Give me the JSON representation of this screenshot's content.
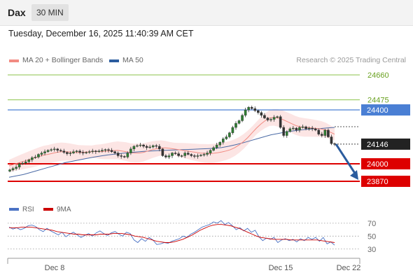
{
  "header": {
    "symbol": "Dax",
    "timeframe": "30 MIN"
  },
  "subtitle": "Tuesday, December 16, 2025 11:40:39 AM CET",
  "legend": {
    "items": [
      {
        "label": "MA 20 + Bollinger Bands",
        "color": "#f28b82"
      },
      {
        "label": "MA 50",
        "color": "#2b5c9e"
      }
    ],
    "credit": "Research © 2025 Trading Central"
  },
  "rsi_legend": {
    "items": [
      {
        "label": "RSI",
        "color": "#4a72c4"
      },
      {
        "label": "9MA",
        "color": "#cc0000"
      }
    ]
  },
  "chart_data": [
    {
      "type": "candlestick",
      "x_ticks": [
        "Dec 8",
        "Dec 15",
        "Dec 22"
      ],
      "ylim": [
        23850,
        24700
      ],
      "levels": [
        {
          "value": 24660,
          "label": "24660",
          "color": "#8bc34a",
          "kind": "target"
        },
        {
          "value": 24475,
          "label": "24475",
          "color": "#8bc34a",
          "kind": "target"
        },
        {
          "value": 24400,
          "label": "24400",
          "color": "#4a7fd4",
          "kind": "pivot"
        },
        {
          "value": 24146,
          "label": "24146",
          "color": "#222222",
          "kind": "last"
        },
        {
          "value": 24000,
          "label": "24000",
          "color": "#dd0000",
          "kind": "support"
        },
        {
          "value": 23870,
          "label": "23870",
          "color": "#dd0000",
          "kind": "support"
        }
      ],
      "last_price": 24146,
      "candles_close": [
        23955,
        23965,
        23975,
        24000,
        24005,
        24015,
        24030,
        24045,
        24050,
        24070,
        24080,
        24090,
        24100,
        24105,
        24110,
        24100,
        24095,
        24085,
        24075,
        24080,
        24090,
        24095,
        24085,
        24080,
        24085,
        24090,
        24095,
        24090,
        24095,
        24100,
        24105,
        24100,
        24090,
        24080,
        24060,
        24055,
        24050,
        24080,
        24110,
        24130,
        24135,
        24140,
        24130,
        24120,
        24125,
        24135,
        24130,
        24110,
        24060,
        24050,
        24060,
        24080,
        24075,
        24060,
        24060,
        24080,
        24070,
        24060,
        24055,
        24060,
        24065,
        24070,
        24080,
        24100,
        24120,
        24140,
        24160,
        24185,
        24200,
        24230,
        24270,
        24300,
        24320,
        24360,
        24400,
        24420,
        24410,
        24395,
        24380,
        24360,
        24340,
        24325,
        24330,
        24345,
        24350,
        24270,
        24210,
        24240,
        24260,
        24265,
        24250,
        24270,
        24275,
        24260,
        24265,
        24260,
        24250,
        24220,
        24210,
        24250,
        24200,
        24150,
        24146
      ],
      "ma20_series": [
        23985,
        23995,
        24005,
        24015,
        24025,
        24035,
        24045,
        24055,
        24065,
        24070,
        24078,
        24085,
        24090,
        24090,
        24088,
        24085,
        24083,
        24085,
        24088,
        24090,
        24092,
        24090,
        24092,
        24095,
        24098,
        24100,
        24095,
        24090,
        24082,
        24080,
        24080,
        24085,
        24095,
        24105,
        24112,
        24118,
        24118,
        24115,
        24110,
        24105,
        24100,
        24095,
        24090,
        24085,
        24080,
        24078,
        24076,
        24078,
        24082,
        24088,
        24095,
        24105,
        24120,
        24140,
        24165,
        24195,
        24230,
        24265,
        24295,
        24320,
        24340,
        24345,
        24340,
        24330,
        24315,
        24300,
        24285,
        24275,
        24270,
        24268,
        24265,
        24262,
        24258,
        24250,
        24235,
        24220
      ],
      "ma50_series": [
        23900,
        23910,
        23920,
        23935,
        23950,
        23965,
        23980,
        23995,
        24010,
        24020,
        24030,
        24040,
        24050,
        24058,
        24066,
        24072,
        24078,
        24083,
        24088,
        24092,
        24095,
        24098,
        24100,
        24102,
        24104,
        24106,
        24108,
        24110,
        24112,
        24115,
        24120,
        24130,
        24142,
        24155,
        24170,
        24185,
        24200,
        24215,
        24225,
        24235,
        24243,
        24250,
        24255,
        24260,
        24262,
        24266,
        24270
      ],
      "forecast": {
        "from": 24146,
        "to": 23870
      }
    },
    {
      "type": "line",
      "title": "RSI",
      "ylim": [
        20,
        85
      ],
      "y_ticks": [
        70,
        50,
        30
      ],
      "series": [
        {
          "name": "RSI",
          "color": "#4a72c4",
          "values": [
            64,
            61,
            63,
            60,
            62,
            66,
            67,
            65,
            60,
            57,
            62,
            58,
            55,
            52,
            56,
            49,
            53,
            56,
            52,
            48,
            51,
            54,
            50,
            55,
            58,
            54,
            51,
            55,
            57,
            53,
            50,
            56,
            54,
            44,
            40,
            46,
            42,
            48,
            44,
            37,
            38,
            40,
            39,
            42,
            44,
            46,
            50,
            48,
            53,
            56,
            60,
            64,
            66,
            68,
            72,
            70,
            74,
            68,
            71,
            66,
            60,
            63,
            58,
            62,
            56,
            59,
            49,
            43,
            47,
            45,
            48,
            40,
            44,
            46,
            43,
            45,
            41,
            46,
            43,
            48,
            45,
            48,
            42,
            48,
            38,
            41,
            36
          ]
        },
        {
          "name": "9MA",
          "color": "#cc0000",
          "values": [
            63,
            63,
            63,
            64,
            64,
            64,
            63,
            62,
            61,
            60,
            59,
            57,
            56,
            55,
            54,
            53,
            53,
            52,
            52,
            52,
            52,
            53,
            53,
            53,
            54,
            54,
            54,
            53,
            52,
            50,
            49,
            48,
            46,
            44,
            42,
            41,
            40,
            40,
            41,
            43,
            45,
            48,
            51,
            55,
            59,
            62,
            65,
            67,
            68,
            68,
            67,
            66,
            64,
            62,
            59,
            56,
            53,
            50,
            48,
            47,
            46,
            45,
            45,
            45,
            45,
            44,
            44,
            44,
            44,
            44,
            44,
            44,
            43,
            42,
            41,
            40
          ]
        }
      ]
    }
  ]
}
